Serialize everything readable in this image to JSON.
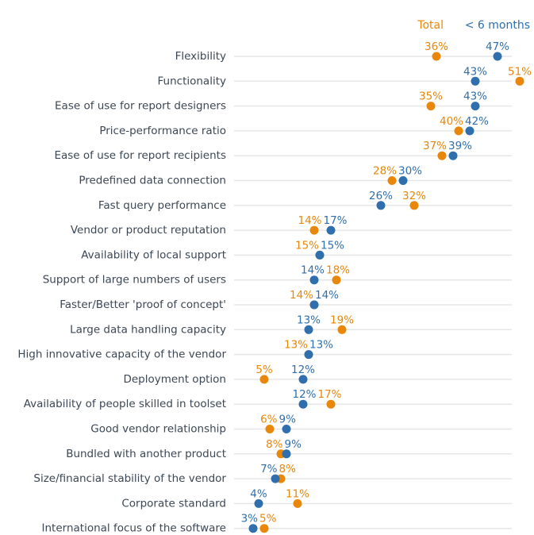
{
  "chart_data": {
    "type": "dot",
    "legend": [
      {
        "name": "Total",
        "color": "#e8870a"
      },
      {
        "name": "< 6 months",
        "color": "#2f6fad"
      }
    ],
    "legend_position": "top-right",
    "value_suffix": "%",
    "categories": [
      "Flexibility",
      "Functionality",
      "Ease of use for report designers",
      "Price-performance ratio",
      "Ease of use for report recipients",
      "Predefined data connection",
      "Fast query performance",
      "Vendor or product reputation",
      "Availability of local support",
      "Support of large numbers of users",
      "Faster/Better 'proof of concept'",
      "Large data handling capacity",
      "High innovative capacity of the vendor",
      "Deployment option",
      "Availability of people skilled in toolset",
      "Good vendor relationship",
      "Bundled with another product",
      "Size/financial stability of the vendor",
      "Corporate standard",
      "International focus of the software"
    ],
    "series": [
      {
        "name": "Total",
        "values": [
          36,
          51,
          35,
          40,
          37,
          28,
          32,
          14,
          15,
          18,
          14,
          19,
          13,
          5,
          17,
          6,
          8,
          8,
          11,
          5
        ]
      },
      {
        "name": "< 6 months",
        "values": [
          47,
          43,
          43,
          42,
          39,
          30,
          26,
          17,
          15,
          14,
          14,
          13,
          13,
          12,
          12,
          9,
          9,
          7,
          4,
          3
        ]
      }
    ],
    "grid": true
  }
}
